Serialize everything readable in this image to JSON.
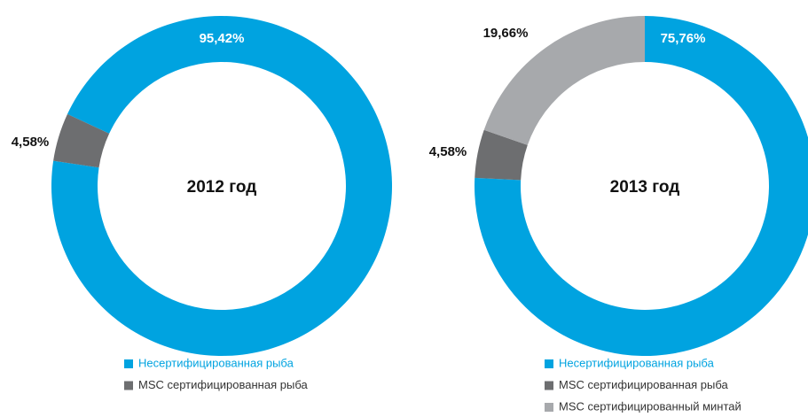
{
  "chart_data": [
    {
      "type": "pie",
      "title": "2012 год",
      "series": [
        {
          "name": "Несертифицированная рыба",
          "color": "#00a3e0",
          "values": [
            95.42
          ],
          "value_labels": [
            "95,42%"
          ]
        },
        {
          "name": "MSC сертифицированная рыба",
          "color": "#6d6e70",
          "values": [
            4.58
          ],
          "value_labels": [
            "4,58%"
          ]
        }
      ]
    },
    {
      "type": "pie",
      "title": "2013 год",
      "series": [
        {
          "name": "Несертифицированная рыба",
          "color": "#00a3e0",
          "values": [
            75.76
          ],
          "value_labels": [
            "75,76%"
          ]
        },
        {
          "name": "MSC сертифицированная рыба",
          "color": "#6d6e70",
          "values": [
            4.58
          ],
          "value_labels": [
            "4,58%"
          ]
        },
        {
          "name": "MSC сертифицированный минтай",
          "color": "#a7a9ac",
          "values": [
            19.66
          ],
          "value_labels": [
            "19,66%"
          ]
        }
      ]
    }
  ]
}
